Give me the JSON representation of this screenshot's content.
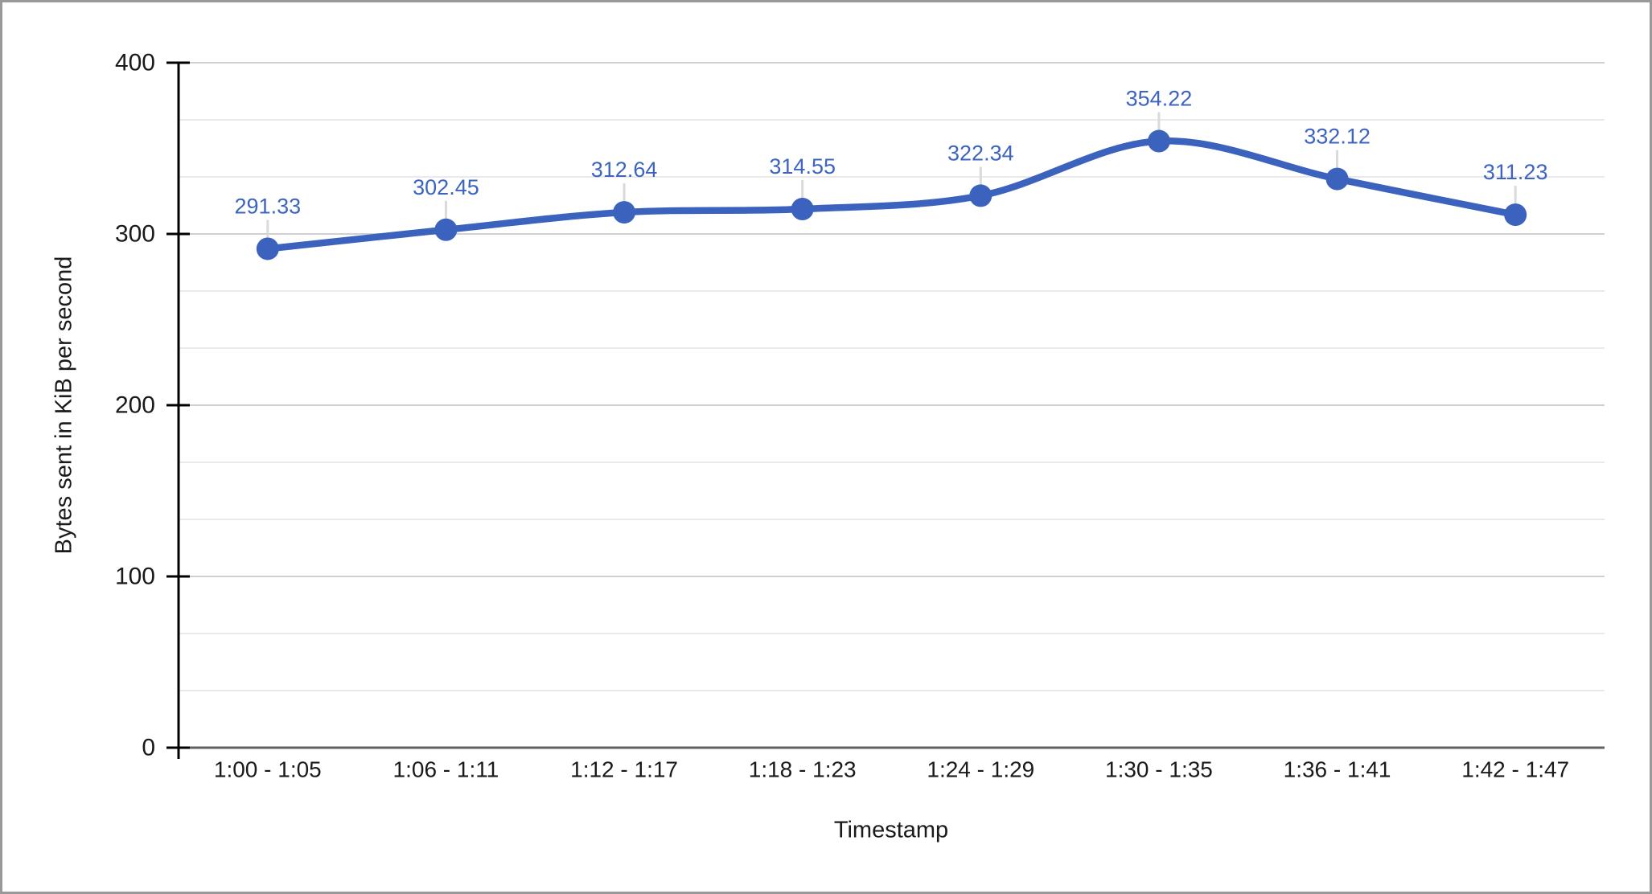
{
  "chart_data": {
    "type": "line",
    "smooth": true,
    "title": "",
    "xlabel": "Timestamp",
    "ylabel": "Bytes sent in KiB per second",
    "categories": [
      "1:00 - 1:05",
      "1:06 - 1:11",
      "1:12 - 1:17",
      "1:18 - 1:23",
      "1:24 - 1:29",
      "1:30 - 1:35",
      "1:36 - 1:41",
      "1:42 - 1:47"
    ],
    "values": [
      291.33,
      302.45,
      312.64,
      314.55,
      322.34,
      354.22,
      332.12,
      311.23
    ],
    "point_labels": [
      "291.33",
      "302.45",
      "312.64",
      "314.55",
      "322.34",
      "354.22",
      "332.12",
      "311.23"
    ],
    "ylim": [
      0,
      400
    ],
    "yticks": [
      0,
      100,
      200,
      300,
      400
    ],
    "minor_gridlines_per_interval": 2,
    "grid": true,
    "legend": "none",
    "colors": {
      "series": "#3B63BE",
      "annotation_text": "#3C64C0",
      "annotation_stem": "#dadada",
      "axis_line": "#000000",
      "baseline": "#616161",
      "major_grid": "#d0d0d0",
      "minor_grid": "#e9e9e9",
      "tick_label": "#1a1a1a",
      "frame_border": "#999999",
      "background": "#ffffff"
    }
  }
}
